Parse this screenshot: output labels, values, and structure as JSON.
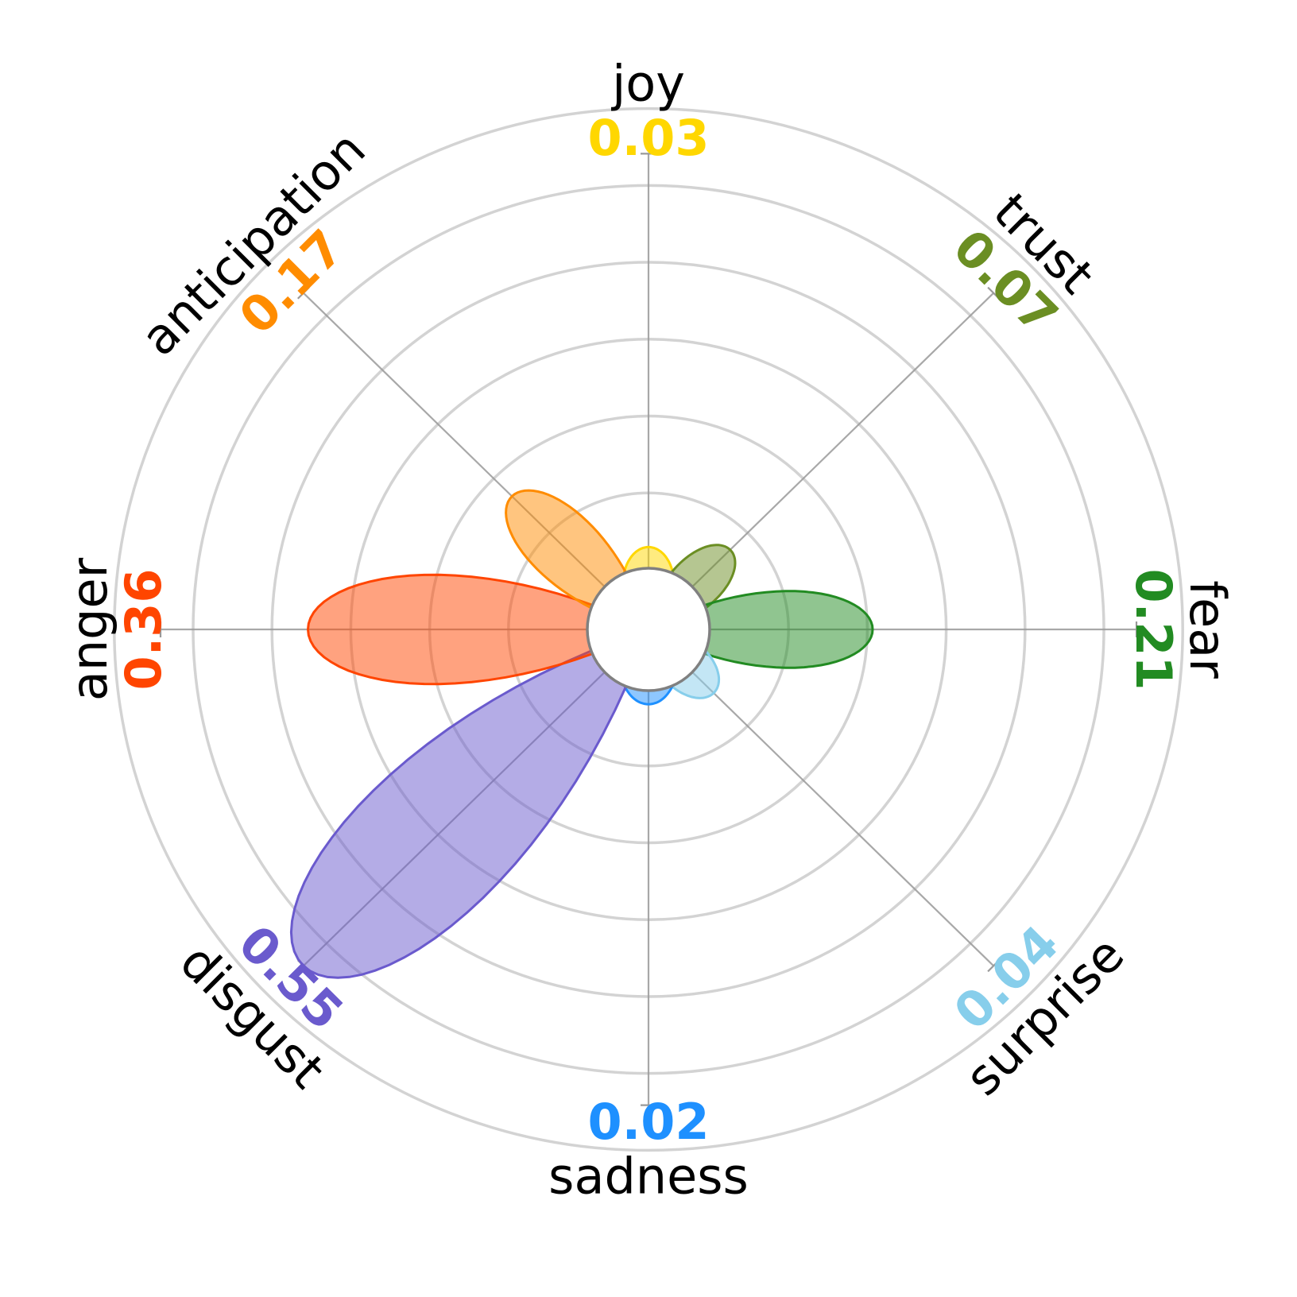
{
  "chart_data": {
    "type": "polar-petal",
    "title": "",
    "grid": true,
    "rmax": 0.55,
    "grid_rings": 6,
    "categories": [
      {
        "name": "joy",
        "value": 0.03,
        "value_label": "0.03",
        "color": "#FFD700"
      },
      {
        "name": "trust",
        "value": 0.07,
        "value_label": "0.07",
        "color": "#6B8E23"
      },
      {
        "name": "fear",
        "value": 0.21,
        "value_label": "0.21",
        "color": "#228B22"
      },
      {
        "name": "surprise",
        "value": 0.04,
        "value_label": "0.04",
        "color": "#87CEEB"
      },
      {
        "name": "sadness",
        "value": 0.02,
        "value_label": "0.02",
        "color": "#1E90FF"
      },
      {
        "name": "disgust",
        "value": 0.55,
        "value_label": "0.55",
        "color": "#6A5ACD"
      },
      {
        "name": "anger",
        "value": 0.36,
        "value_label": "0.36",
        "color": "#FF4500"
      },
      {
        "name": "anticipation",
        "value": 0.17,
        "value_label": "0.17",
        "color": "#FF8C00"
      }
    ]
  }
}
